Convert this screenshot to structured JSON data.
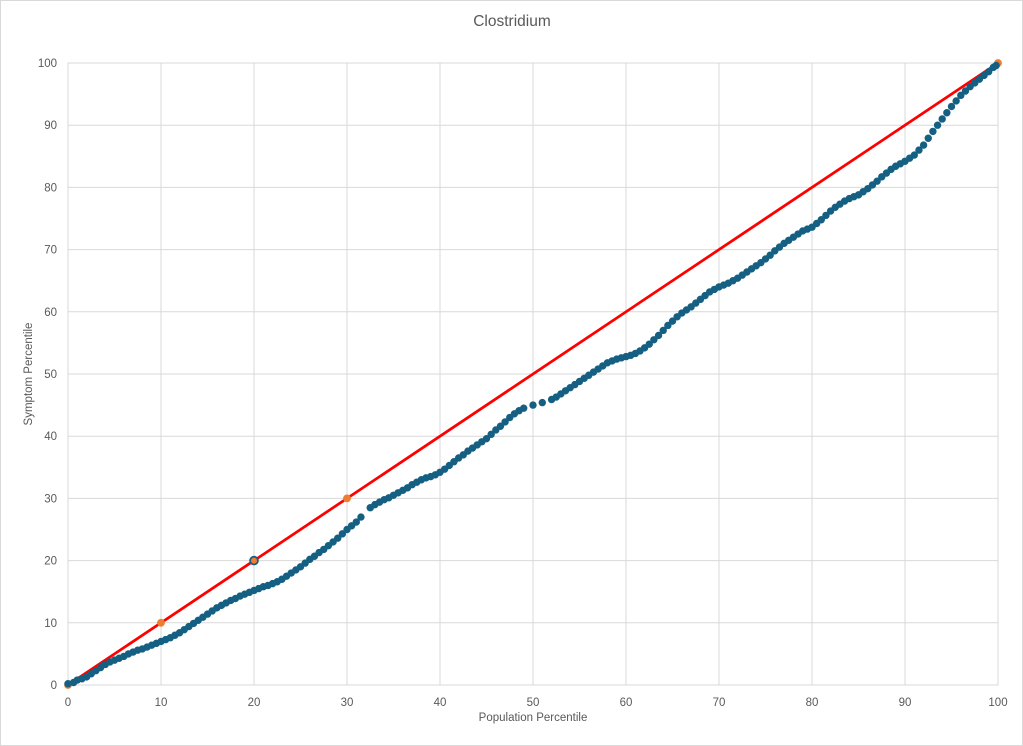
{
  "chart_data": {
    "type": "scatter",
    "title": "Clostridium",
    "xlabel": "Population Percentile",
    "ylabel": "Symptom Percentile",
    "xlim": [
      0,
      100
    ],
    "ylim": [
      0,
      100
    ],
    "x_ticks": [
      0,
      10,
      20,
      30,
      40,
      50,
      60,
      70,
      80,
      90,
      100
    ],
    "y_ticks": [
      0,
      10,
      20,
      30,
      40,
      50,
      60,
      70,
      80,
      90,
      100
    ],
    "grid": true,
    "legend": "none",
    "colors": {
      "points": "#156082",
      "reference_line": "#FF0000",
      "highlight": "#ED7D31",
      "highlight_ring": "#156082",
      "gridline": "#D9D9D9",
      "plot_border": "#D9D9D9",
      "text": "#595959",
      "background": "#FFFFFF"
    },
    "series": [
      {
        "name": "identity-reference-line",
        "type": "line",
        "color": "#FF0000",
        "width": 2.75,
        "points": [
          [
            0,
            0
          ],
          [
            100,
            100
          ]
        ]
      },
      {
        "name": "highlight-markers",
        "type": "scatter",
        "color": "#ED7D31",
        "marker_radius": 3.9,
        "points": [
          [
            0,
            0
          ],
          [
            10,
            10
          ],
          [
            20,
            20
          ],
          [
            30,
            30
          ],
          [
            100,
            100
          ]
        ],
        "ringed_point": [
          20,
          20
        ]
      },
      {
        "name": "observed-symptom-percentiles",
        "type": "scatter",
        "color": "#156082",
        "marker_radius": 3.7,
        "points": [
          [
            0,
            0.2
          ],
          [
            0.6,
            0.4
          ],
          [
            1,
            0.8
          ],
          [
            1.5,
            1.0
          ],
          [
            2,
            1.3
          ],
          [
            2.5,
            1.8
          ],
          [
            3,
            2.3
          ],
          [
            3.5,
            2.8
          ],
          [
            4,
            3.3
          ],
          [
            4.5,
            3.7
          ],
          [
            5,
            4.0
          ],
          [
            5.5,
            4.3
          ],
          [
            6,
            4.6
          ],
          [
            6.5,
            5.0
          ],
          [
            7,
            5.3
          ],
          [
            7.5,
            5.6
          ],
          [
            8,
            5.8
          ],
          [
            8.5,
            6.1
          ],
          [
            9,
            6.4
          ],
          [
            9.5,
            6.7
          ],
          [
            10,
            7.0
          ],
          [
            10.5,
            7.3
          ],
          [
            11,
            7.6
          ],
          [
            11.5,
            8.0
          ],
          [
            12,
            8.4
          ],
          [
            12.5,
            8.9
          ],
          [
            13,
            9.4
          ],
          [
            13.5,
            9.9
          ],
          [
            14,
            10.4
          ],
          [
            14.5,
            10.9
          ],
          [
            15,
            11.4
          ],
          [
            15.5,
            11.9
          ],
          [
            16,
            12.4
          ],
          [
            16.5,
            12.8
          ],
          [
            17,
            13.2
          ],
          [
            17.5,
            13.6
          ],
          [
            18,
            13.9
          ],
          [
            18.5,
            14.3
          ],
          [
            19,
            14.6
          ],
          [
            19.5,
            14.9
          ],
          [
            20,
            15.2
          ],
          [
            20.5,
            15.5
          ],
          [
            21,
            15.8
          ],
          [
            21.5,
            16.0
          ],
          [
            22,
            16.3
          ],
          [
            22.5,
            16.6
          ],
          [
            23,
            17.0
          ],
          [
            23.5,
            17.5
          ],
          [
            24,
            18.0
          ],
          [
            24.5,
            18.5
          ],
          [
            25,
            19.0
          ],
          [
            25.5,
            19.6
          ],
          [
            26,
            20.2
          ],
          [
            26.5,
            20.7
          ],
          [
            27,
            21.3
          ],
          [
            27.5,
            21.8
          ],
          [
            28,
            22.4
          ],
          [
            28.5,
            23.0
          ],
          [
            29,
            23.6
          ],
          [
            29.5,
            24.3
          ],
          [
            30,
            25.0
          ],
          [
            30.5,
            25.6
          ],
          [
            31,
            26.2
          ],
          [
            31.5,
            27.0
          ],
          [
            32.5,
            28.5
          ],
          [
            33,
            29.0
          ],
          [
            33.5,
            29.4
          ],
          [
            34,
            29.8
          ],
          [
            34.5,
            30.1
          ],
          [
            35,
            30.5
          ],
          [
            35.5,
            30.9
          ],
          [
            36,
            31.3
          ],
          [
            36.5,
            31.7
          ],
          [
            37,
            32.2
          ],
          [
            37.5,
            32.6
          ],
          [
            38,
            33.0
          ],
          [
            38.5,
            33.3
          ],
          [
            39,
            33.5
          ],
          [
            39.5,
            33.8
          ],
          [
            40,
            34.2
          ],
          [
            40.5,
            34.7
          ],
          [
            41,
            35.3
          ],
          [
            41.5,
            35.9
          ],
          [
            42,
            36.5
          ],
          [
            42.5,
            37.0
          ],
          [
            43,
            37.6
          ],
          [
            43.5,
            38.1
          ],
          [
            44,
            38.6
          ],
          [
            44.5,
            39.1
          ],
          [
            45,
            39.6
          ],
          [
            45.5,
            40.3
          ],
          [
            46,
            41.0
          ],
          [
            46.5,
            41.6
          ],
          [
            47,
            42.3
          ],
          [
            47.5,
            43.0
          ],
          [
            48,
            43.6
          ],
          [
            48.5,
            44.1
          ],
          [
            49,
            44.5
          ],
          [
            50,
            45.0
          ],
          [
            51,
            45.4
          ],
          [
            52,
            45.9
          ],
          [
            52.5,
            46.3
          ],
          [
            53,
            46.8
          ],
          [
            53.5,
            47.3
          ],
          [
            54,
            47.8
          ],
          [
            54.5,
            48.3
          ],
          [
            55,
            48.8
          ],
          [
            55.5,
            49.3
          ],
          [
            56,
            49.8
          ],
          [
            56.5,
            50.3
          ],
          [
            57,
            50.8
          ],
          [
            57.5,
            51.3
          ],
          [
            58,
            51.8
          ],
          [
            58.5,
            52.1
          ],
          [
            59,
            52.4
          ],
          [
            59.5,
            52.6
          ],
          [
            60,
            52.8
          ],
          [
            60.5,
            53.0
          ],
          [
            61,
            53.3
          ],
          [
            61.5,
            53.7
          ],
          [
            62,
            54.2
          ],
          [
            62.5,
            54.8
          ],
          [
            63,
            55.5
          ],
          [
            63.5,
            56.2
          ],
          [
            64,
            57.0
          ],
          [
            64.5,
            57.8
          ],
          [
            65,
            58.5
          ],
          [
            65.5,
            59.2
          ],
          [
            66,
            59.8
          ],
          [
            66.5,
            60.3
          ],
          [
            67,
            60.8
          ],
          [
            67.5,
            61.4
          ],
          [
            68,
            62.0
          ],
          [
            68.5,
            62.6
          ],
          [
            69,
            63.2
          ],
          [
            69.5,
            63.6
          ],
          [
            70,
            64.0
          ],
          [
            70.5,
            64.3
          ],
          [
            71,
            64.6
          ],
          [
            71.5,
            65.0
          ],
          [
            72,
            65.4
          ],
          [
            72.5,
            65.9
          ],
          [
            73,
            66.4
          ],
          [
            73.5,
            66.9
          ],
          [
            74,
            67.4
          ],
          [
            74.5,
            67.9
          ],
          [
            75,
            68.5
          ],
          [
            75.5,
            69.1
          ],
          [
            76,
            69.8
          ],
          [
            76.5,
            70.4
          ],
          [
            77,
            71.0
          ],
          [
            77.5,
            71.5
          ],
          [
            78,
            72.0
          ],
          [
            78.5,
            72.5
          ],
          [
            79,
            73.0
          ],
          [
            79.5,
            73.3
          ],
          [
            80,
            73.6
          ],
          [
            80.5,
            74.2
          ],
          [
            81,
            74.8
          ],
          [
            81.5,
            75.5
          ],
          [
            82,
            76.2
          ],
          [
            82.5,
            76.8
          ],
          [
            83,
            77.3
          ],
          [
            83.5,
            77.8
          ],
          [
            84,
            78.2
          ],
          [
            84.5,
            78.5
          ],
          [
            85,
            78.8
          ],
          [
            85.5,
            79.3
          ],
          [
            86,
            79.8
          ],
          [
            86.5,
            80.4
          ],
          [
            87,
            81.0
          ],
          [
            87.5,
            81.7
          ],
          [
            88,
            82.3
          ],
          [
            88.5,
            82.9
          ],
          [
            89,
            83.4
          ],
          [
            89.5,
            83.8
          ],
          [
            90,
            84.2
          ],
          [
            90.5,
            84.7
          ],
          [
            91,
            85.2
          ],
          [
            91.5,
            86.0
          ],
          [
            92,
            86.8
          ],
          [
            92.5,
            87.9
          ],
          [
            93,
            89.0
          ],
          [
            93.5,
            90.0
          ],
          [
            94,
            91.0
          ],
          [
            94.5,
            92.0
          ],
          [
            95,
            93.0
          ],
          [
            95.5,
            93.9
          ],
          [
            96,
            94.8
          ],
          [
            96.5,
            95.5
          ],
          [
            97,
            96.2
          ],
          [
            97.5,
            96.8
          ],
          [
            98,
            97.4
          ],
          [
            98.5,
            98.0
          ],
          [
            99,
            98.6
          ],
          [
            99.5,
            99.3
          ],
          [
            99.8,
            99.6
          ]
        ]
      }
    ]
  }
}
